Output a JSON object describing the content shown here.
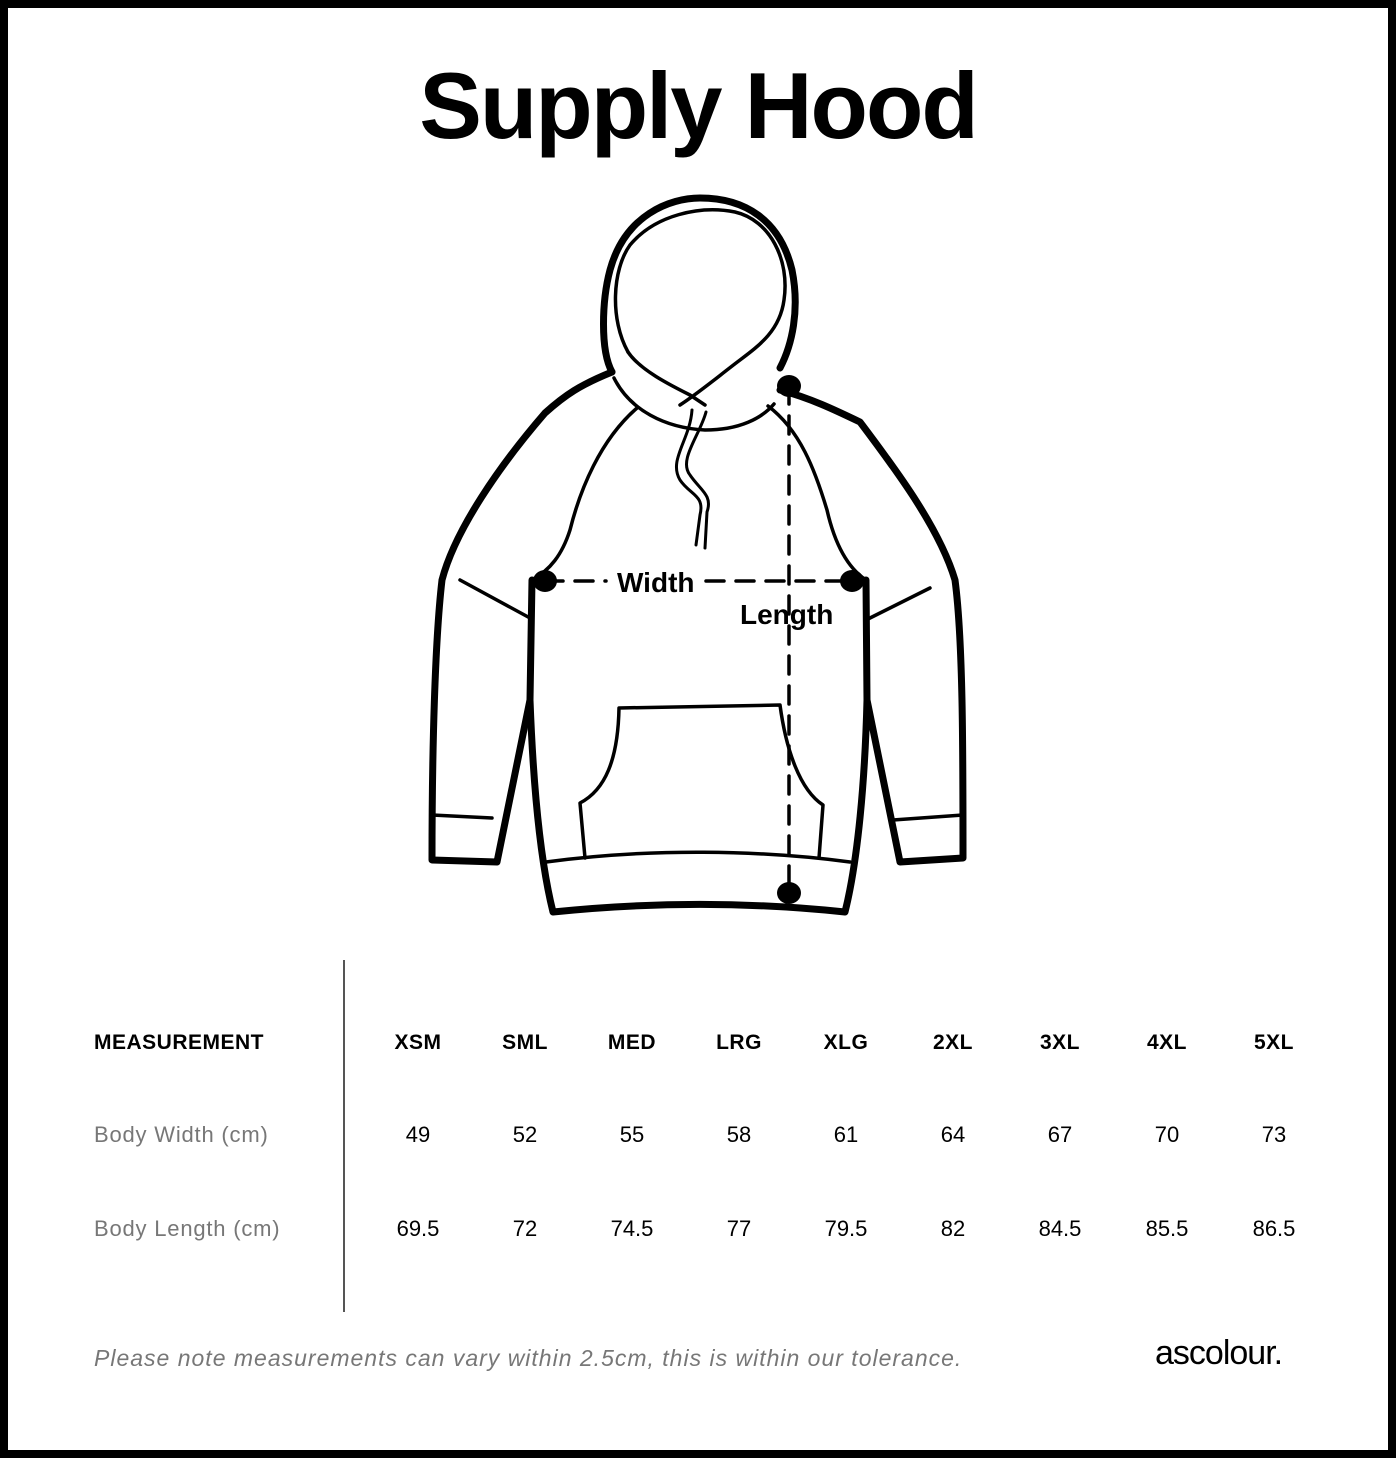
{
  "title": "Supply Hood",
  "diagram": {
    "width_label": "Width",
    "length_label": "Length"
  },
  "table": {
    "header_label": "MEASUREMENT",
    "sizes": [
      "XSM",
      "SML",
      "MED",
      "LRG",
      "XLG",
      "2XL",
      "3XL",
      "4XL",
      "5XL"
    ],
    "rows": [
      {
        "label": "Body Width (cm)",
        "values": [
          "49",
          "52",
          "55",
          "58",
          "61",
          "64",
          "67",
          "70",
          "73"
        ]
      },
      {
        "label": "Body Length (cm)",
        "values": [
          "69.5",
          "72",
          "74.5",
          "77",
          "79.5",
          "82",
          "84.5",
          "85.5",
          "86.5"
        ]
      }
    ]
  },
  "footnote": "Please note measurements can vary within 2.5cm, this is within our tolerance.",
  "brand": "ascolour."
}
